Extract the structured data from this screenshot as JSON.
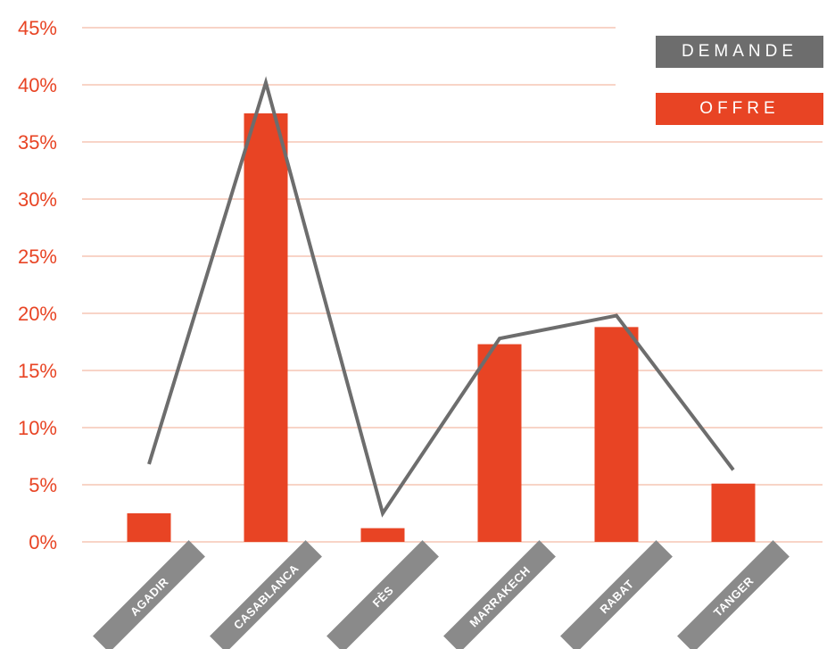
{
  "colors": {
    "offre": "#E84424",
    "demande": "#6D6D6D",
    "tick_text": "#E84424",
    "grid": "#F2A88F",
    "label_bg": "#8A8A8A"
  },
  "legend": {
    "demande": "DEMANDE",
    "offre": "OFFRE"
  },
  "chart_data": {
    "type": "bar",
    "categories": [
      "AGADIR",
      "CASABLANCA",
      "FÈS",
      "MARRAKECH",
      "RABAT",
      "TANGER"
    ],
    "ylim": [
      0,
      45
    ],
    "yticks": [
      0,
      5,
      10,
      15,
      20,
      25,
      30,
      35,
      40,
      45
    ],
    "ytick_labels": [
      "0%",
      "5%",
      "10%",
      "15%",
      "20%",
      "25%",
      "30%",
      "35%",
      "40%",
      "45%"
    ],
    "series": [
      {
        "name": "OFFRE",
        "kind": "bar",
        "values": [
          2.5,
          37.5,
          1.2,
          17.3,
          18.8,
          5.1
        ]
      },
      {
        "name": "DEMANDE",
        "kind": "line",
        "values": [
          6.8,
          40.2,
          2.5,
          17.8,
          19.8,
          6.3
        ]
      }
    ],
    "grid": true,
    "legend_position": "top-right"
  }
}
